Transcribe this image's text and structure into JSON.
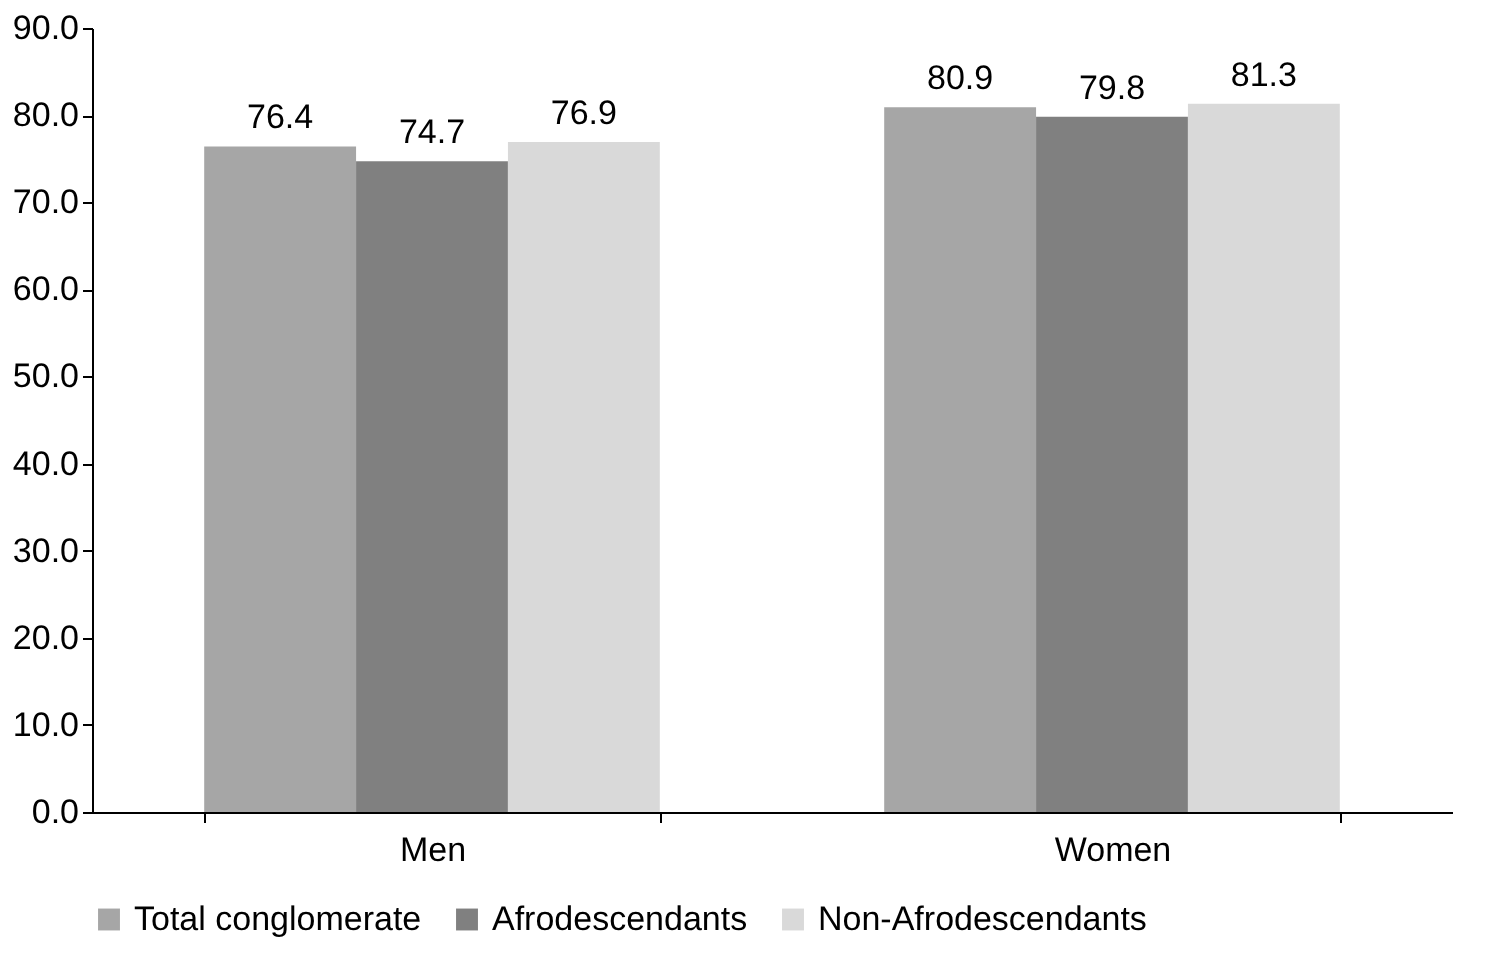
{
  "chart_data": {
    "type": "bar",
    "categories": [
      "Men",
      "Women"
    ],
    "series": [
      {
        "name": "Total conglomerate",
        "color": "#a6a6a6",
        "values": [
          76.4,
          80.9
        ]
      },
      {
        "name": "Afrodescendants",
        "color": "#808080",
        "values": [
          74.7,
          79.8
        ]
      },
      {
        "name": "Non-Afrodescendants",
        "color": "#d9d9d9",
        "values": [
          76.9,
          81.3
        ]
      }
    ],
    "ylim": [
      0,
      90
    ],
    "yticks": [
      {
        "value": 0,
        "label": "0.0"
      },
      {
        "value": 10,
        "label": "10.0"
      },
      {
        "value": 20,
        "label": "20.0"
      },
      {
        "value": 30,
        "label": "30.0"
      },
      {
        "value": 40,
        "label": "40.0"
      },
      {
        "value": 50,
        "label": "50.0"
      },
      {
        "value": 60,
        "label": "60.0"
      },
      {
        "value": 70,
        "label": "70.0"
      },
      {
        "value": 80,
        "label": "80.0"
      },
      {
        "value": 90,
        "label": "90.0"
      }
    ],
    "data_labels": true,
    "grid": false,
    "legend": "bottom"
  }
}
